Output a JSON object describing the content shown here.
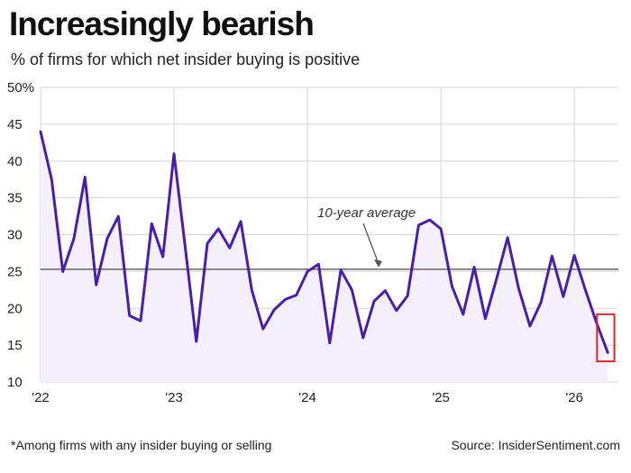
{
  "title": "Increasingly bearish",
  "subtitle": "% of firms for which net insider buying is positive",
  "footnote": "*Among firms with any insider buying or selling",
  "source": "Source: InsiderSentiment.com",
  "chart_data": {
    "type": "area",
    "ylim": [
      10,
      50
    ],
    "xlim": [
      2022.0,
      2026.33
    ],
    "y_ticks": [
      "50%",
      "45",
      "40",
      "35",
      "30",
      "25",
      "20",
      "15",
      "10"
    ],
    "y_tick_values": [
      50,
      45,
      40,
      35,
      30,
      25,
      20,
      15,
      10
    ],
    "x_ticks": [
      "'22",
      "'23",
      "'24",
      "'25",
      "'26"
    ],
    "x_tick_values": [
      2022,
      2023,
      2024,
      2025,
      2026
    ],
    "grid": true,
    "reference_line": {
      "label": "10-year average",
      "value": 25.3
    },
    "highlight": {
      "x_from": 2026.17,
      "x_to": 2026.3,
      "y_from": 12.8,
      "y_to": 19.2
    },
    "colors": {
      "line": "#4a1fa8",
      "fill": "#f3effb",
      "reference": "#666666",
      "highlight": "#d7262b",
      "grid": "#d6d6d6"
    },
    "series": [
      {
        "x": [
          2022.0,
          2022.083,
          2022.167,
          2022.25,
          2022.333,
          2022.417,
          2022.5,
          2022.583,
          2022.667,
          2022.75,
          2022.833,
          2022.917,
          2023.0,
          2023.083,
          2023.167,
          2023.25,
          2023.333,
          2023.417,
          2023.5,
          2023.583,
          2023.667,
          2023.75,
          2023.833,
          2023.917,
          2024.0,
          2024.083,
          2024.167,
          2024.25,
          2024.333,
          2024.417,
          2024.5,
          2024.583,
          2024.667,
          2024.75,
          2024.833,
          2024.917,
          2025.0,
          2025.083,
          2025.167,
          2025.25,
          2025.333,
          2025.417,
          2025.5,
          2025.583,
          2025.667,
          2025.75,
          2025.833,
          2025.917,
          2026.0,
          2026.083,
          2026.167,
          2026.25
        ],
        "y": [
          44.0,
          37.5,
          25.0,
          29.5,
          37.8,
          23.2,
          29.5,
          32.5,
          19.0,
          18.3,
          31.5,
          27.0,
          41.0,
          28.5,
          15.5,
          28.8,
          30.8,
          28.2,
          31.8,
          22.5,
          17.2,
          19.8,
          21.2,
          21.8,
          25.0,
          26.0,
          15.3,
          25.2,
          22.5,
          16.0,
          21.0,
          22.4,
          19.7,
          21.7,
          31.3,
          32.0,
          30.8,
          23.0,
          19.2,
          25.6,
          18.6,
          24.0,
          29.6,
          22.7,
          17.6,
          20.8,
          27.1,
          21.6,
          27.2,
          22.5,
          18.0,
          14.0
        ]
      }
    ]
  }
}
